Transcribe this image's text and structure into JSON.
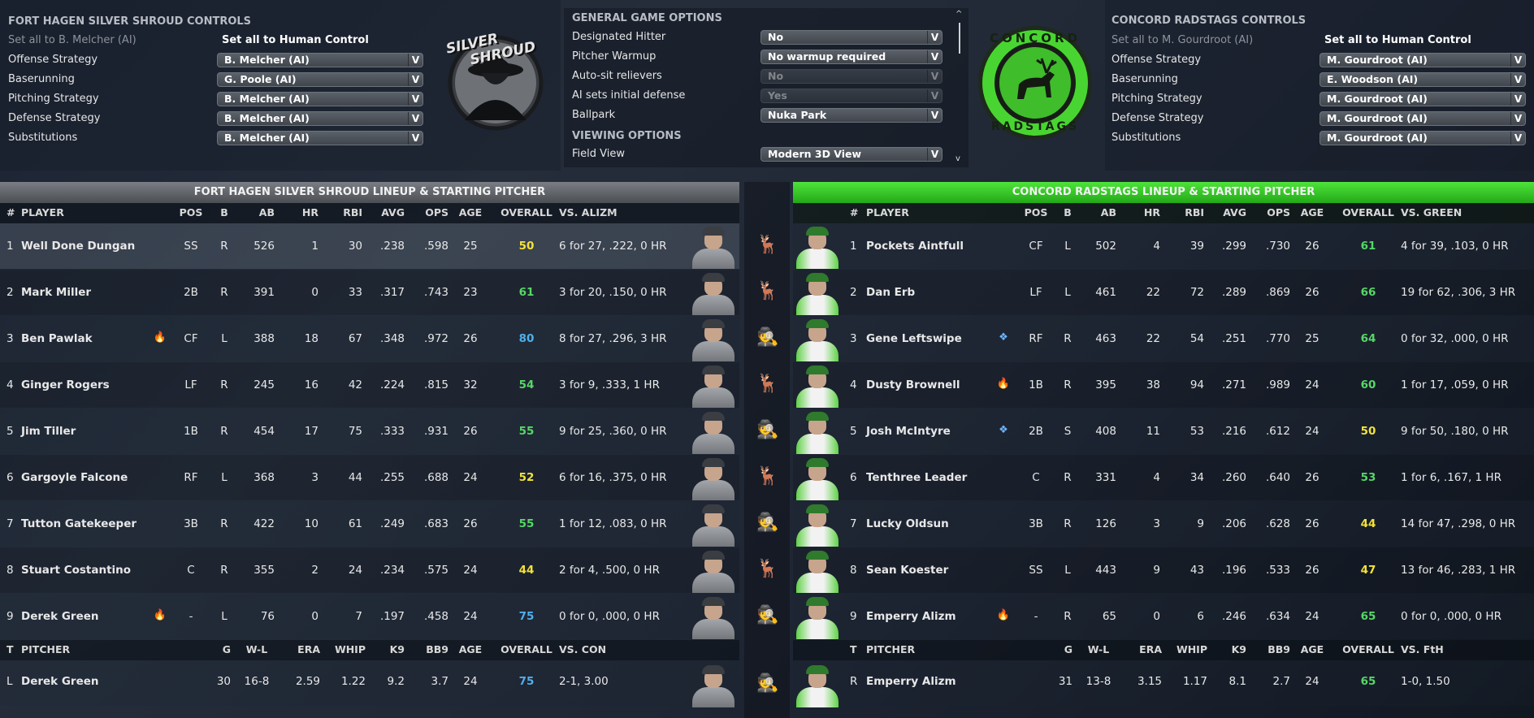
{
  "away_controls": {
    "title": "FORT HAGEN SILVER SHROUD CONTROLS",
    "set_ai": "Set all to B. Melcher (AI)",
    "set_human": "Set all to Human Control",
    "rows": [
      {
        "label": "Offense Strategy",
        "value": "B. Melcher (AI)"
      },
      {
        "label": "Baserunning",
        "value": "G. Poole (AI)"
      },
      {
        "label": "Pitching Strategy",
        "value": "B. Melcher (AI)"
      },
      {
        "label": "Defense Strategy",
        "value": "B. Melcher (AI)"
      },
      {
        "label": "Substitutions",
        "value": "B. Melcher (AI)"
      }
    ]
  },
  "away_logo": {
    "top": "SILVER",
    "bottom": "SHROUD"
  },
  "options": {
    "general_title": "GENERAL GAME OPTIONS",
    "viewing_title": "VIEWING OPTIONS",
    "rows": [
      {
        "label": "Designated Hitter",
        "value": "No",
        "disabled": false
      },
      {
        "label": "Pitcher Warmup",
        "value": "No warmup required",
        "disabled": false
      },
      {
        "label": "Auto-sit relievers",
        "value": "No",
        "disabled": true
      },
      {
        "label": "AI sets initial defense",
        "value": "Yes",
        "disabled": true
      },
      {
        "label": "Ballpark",
        "value": "Nuka Park",
        "disabled": false
      }
    ],
    "view_row": {
      "label": "Field View",
      "value": "Modern 3D View"
    }
  },
  "home_logo": {
    "top": "CONCORD",
    "bottom": "RADSTAGS"
  },
  "home_controls": {
    "title": "CONCORD RADSTAGS CONTROLS",
    "set_ai": "Set all to M. Gourdroot (AI)",
    "set_human": "Set all to Human Control",
    "rows": [
      {
        "label": "Offense Strategy",
        "value": "M. Gourdroot (AI)"
      },
      {
        "label": "Baserunning",
        "value": "E. Woodson (AI)"
      },
      {
        "label": "Pitching Strategy",
        "value": "M. Gourdroot (AI)"
      },
      {
        "label": "Defense Strategy",
        "value": "M. Gourdroot (AI)"
      },
      {
        "label": "Substitutions",
        "value": "M. Gourdroot (AI)"
      }
    ]
  },
  "away_lineup": {
    "title": "FORT HAGEN SILVER SHROUD LINEUP & STARTING PITCHER",
    "headers": {
      "num": "#",
      "player": "PLAYER",
      "pos": "POS",
      "b": "B",
      "ab": "AB",
      "hr": "HR",
      "rbi": "RBI",
      "avg": "AVG",
      "ops": "OPS",
      "age": "AGE",
      "overall": "OVERALL",
      "vs": "VS. ALIZM"
    },
    "rows": [
      {
        "num": "1",
        "name": "Well Done Dungan",
        "badge": "",
        "pos": "SS",
        "b": "R",
        "ab": "526",
        "hr": "1",
        "rbi": "30",
        "avg": ".238",
        "ops": ".598",
        "age": "25",
        "overall": "50",
        "tier": "y",
        "vs": "6 for 27, .222, 0 HR",
        "mid": "deer"
      },
      {
        "num": "2",
        "name": "Mark Miller",
        "badge": "",
        "pos": "2B",
        "b": "R",
        "ab": "391",
        "hr": "0",
        "rbi": "33",
        "avg": ".317",
        "ops": ".743",
        "age": "23",
        "overall": "61",
        "tier": "g",
        "vs": "3 for 20, .150, 0 HR",
        "mid": "deer"
      },
      {
        "num": "3",
        "name": "Ben Pawlak",
        "badge": "fire",
        "pos": "CF",
        "b": "L",
        "ab": "388",
        "hr": "18",
        "rbi": "67",
        "avg": ".348",
        "ops": ".972",
        "age": "26",
        "overall": "80",
        "tier": "b",
        "vs": "8 for 27, .296, 3 HR",
        "mid": "ghost"
      },
      {
        "num": "4",
        "name": "Ginger Rogers",
        "badge": "",
        "pos": "LF",
        "b": "R",
        "ab": "245",
        "hr": "16",
        "rbi": "42",
        "avg": ".224",
        "ops": ".815",
        "age": "32",
        "overall": "54",
        "tier": "g",
        "vs": "3 for 9, .333, 1 HR",
        "mid": "deer"
      },
      {
        "num": "5",
        "name": "Jim Tiller",
        "badge": "",
        "pos": "1B",
        "b": "R",
        "ab": "454",
        "hr": "17",
        "rbi": "75",
        "avg": ".333",
        "ops": ".931",
        "age": "26",
        "overall": "55",
        "tier": "g",
        "vs": "9 for 25, .360, 0 HR",
        "mid": "ghost"
      },
      {
        "num": "6",
        "name": "Gargoyle Falcone",
        "badge": "",
        "pos": "RF",
        "b": "L",
        "ab": "368",
        "hr": "3",
        "rbi": "44",
        "avg": ".255",
        "ops": ".688",
        "age": "24",
        "overall": "52",
        "tier": "y",
        "vs": "6 for 16, .375, 0 HR",
        "mid": "deer"
      },
      {
        "num": "7",
        "name": "Tutton Gatekeeper",
        "badge": "",
        "pos": "3B",
        "b": "R",
        "ab": "422",
        "hr": "10",
        "rbi": "61",
        "avg": ".249",
        "ops": ".683",
        "age": "26",
        "overall": "55",
        "tier": "g",
        "vs": "1 for 12, .083, 0 HR",
        "mid": "ghost"
      },
      {
        "num": "8",
        "name": "Stuart Costantino",
        "badge": "",
        "pos": "C",
        "b": "R",
        "ab": "355",
        "hr": "2",
        "rbi": "24",
        "avg": ".234",
        "ops": ".575",
        "age": "24",
        "overall": "44",
        "tier": "y",
        "vs": "2 for 4, .500, 0 HR",
        "mid": "deer"
      },
      {
        "num": "9",
        "name": "Derek Green",
        "badge": "fire",
        "pos": "-",
        "b": "L",
        "ab": "76",
        "hr": "0",
        "rbi": "7",
        "avg": ".197",
        "ops": ".458",
        "age": "24",
        "overall": "75",
        "tier": "b",
        "vs": "0 for 0, .000, 0 HR",
        "mid": "ghost"
      }
    ],
    "pitcher_headers": {
      "t": "T",
      "pitcher": "PITCHER",
      "g": "G",
      "wl": "W-L",
      "era": "ERA",
      "whip": "WHIP",
      "k9": "K9",
      "bb9": "BB9",
      "age": "AGE",
      "overall": "OVERALL",
      "vs": "VS. CON"
    },
    "pitcher": {
      "t": "L",
      "name": "Derek Green",
      "g": "30",
      "wl": "16-8",
      "era": "2.59",
      "whip": "1.22",
      "k9": "9.2",
      "bb9": "3.7",
      "age": "24",
      "overall": "75",
      "tier": "b",
      "vs": "2-1, 3.00"
    }
  },
  "home_lineup": {
    "title": "CONCORD RADSTAGS LINEUP & STARTING PITCHER",
    "headers": {
      "num": "#",
      "player": "PLAYER",
      "pos": "POS",
      "b": "B",
      "ab": "AB",
      "hr": "HR",
      "rbi": "RBI",
      "avg": "AVG",
      "ops": "OPS",
      "age": "AGE",
      "overall": "OVERALL",
      "vs": "VS. GREEN"
    },
    "rows": [
      {
        "num": "1",
        "name": "Pockets Aintfull",
        "badge": "",
        "pos": "CF",
        "b": "L",
        "ab": "502",
        "hr": "4",
        "rbi": "39",
        "avg": ".299",
        "ops": ".730",
        "age": "26",
        "overall": "61",
        "tier": "g",
        "vs": "4 for 39, .103, 0 HR"
      },
      {
        "num": "2",
        "name": "Dan Erb",
        "badge": "",
        "pos": "LF",
        "b": "L",
        "ab": "461",
        "hr": "22",
        "rbi": "72",
        "avg": ".289",
        "ops": ".869",
        "age": "26",
        "overall": "66",
        "tier": "g",
        "vs": "19 for 62, .306, 3 HR"
      },
      {
        "num": "3",
        "name": "Gene Leftswipe",
        "badge": "ice",
        "pos": "RF",
        "b": "R",
        "ab": "463",
        "hr": "22",
        "rbi": "54",
        "avg": ".251",
        "ops": ".770",
        "age": "25",
        "overall": "64",
        "tier": "g",
        "vs": "0 for 32, .000, 0 HR"
      },
      {
        "num": "4",
        "name": "Dusty Brownell",
        "badge": "fire",
        "pos": "1B",
        "b": "R",
        "ab": "395",
        "hr": "38",
        "rbi": "94",
        "avg": ".271",
        "ops": ".989",
        "age": "24",
        "overall": "60",
        "tier": "g",
        "vs": "1 for 17, .059, 0 HR"
      },
      {
        "num": "5",
        "name": "Josh McIntyre",
        "badge": "ice",
        "pos": "2B",
        "b": "S",
        "ab": "408",
        "hr": "11",
        "rbi": "53",
        "avg": ".216",
        "ops": ".612",
        "age": "24",
        "overall": "50",
        "tier": "y",
        "vs": "9 for 50, .180, 0 HR"
      },
      {
        "num": "6",
        "name": "Tenthree Leader",
        "badge": "",
        "pos": "C",
        "b": "R",
        "ab": "331",
        "hr": "4",
        "rbi": "34",
        "avg": ".260",
        "ops": ".640",
        "age": "26",
        "overall": "53",
        "tier": "g",
        "vs": "1 for 6, .167, 1 HR"
      },
      {
        "num": "7",
        "name": "Lucky Oldsun",
        "badge": "",
        "pos": "3B",
        "b": "R",
        "ab": "126",
        "hr": "3",
        "rbi": "9",
        "avg": ".206",
        "ops": ".628",
        "age": "26",
        "overall": "44",
        "tier": "y",
        "vs": "14 for 47, .298, 0 HR"
      },
      {
        "num": "8",
        "name": "Sean Koester",
        "badge": "",
        "pos": "SS",
        "b": "L",
        "ab": "443",
        "hr": "9",
        "rbi": "43",
        "avg": ".196",
        "ops": ".533",
        "age": "26",
        "overall": "47",
        "tier": "y",
        "vs": "13 for 46, .283, 1 HR"
      },
      {
        "num": "9",
        "name": "Emperry Alizm",
        "badge": "fire",
        "pos": "-",
        "b": "R",
        "ab": "65",
        "hr": "0",
        "rbi": "6",
        "avg": ".246",
        "ops": ".634",
        "age": "24",
        "overall": "65",
        "tier": "g",
        "vs": "0 for 0, .000, 0 HR"
      }
    ],
    "pitcher_headers": {
      "t": "T",
      "pitcher": "PITCHER",
      "g": "G",
      "wl": "W-L",
      "era": "ERA",
      "whip": "WHIP",
      "k9": "K9",
      "bb9": "BB9",
      "age": "AGE",
      "overall": "OVERALL",
      "vs": "VS. FtH"
    },
    "pitcher": {
      "t": "R",
      "name": "Emperry Alizm",
      "g": "31",
      "wl": "13-8",
      "era": "3.15",
      "whip": "1.17",
      "k9": "8.1",
      "bb9": "2.7",
      "age": "24",
      "overall": "65",
      "tier": "g",
      "vs": "1-0, 1.50"
    }
  },
  "colors": {
    "accent_green": "#39d92a",
    "overall_yellow": "#f3e23a",
    "overall_green": "#56d866",
    "overall_blue": "#4fb0ea",
    "fire": "#ff5a1f",
    "ice": "#6fb6ff"
  }
}
